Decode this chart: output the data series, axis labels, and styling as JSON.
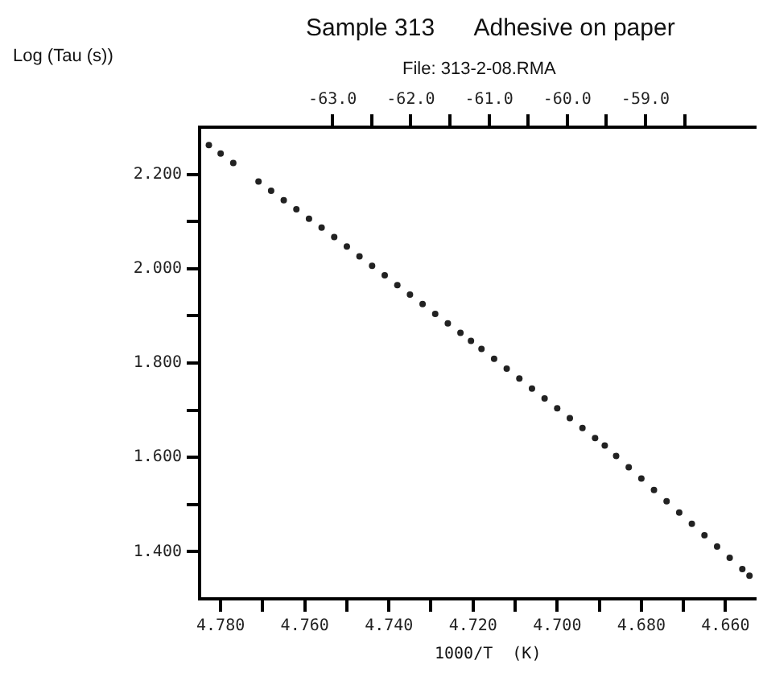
{
  "chart_data": {
    "type": "scatter",
    "title": "Sample 313      Adhesive on paper",
    "subtitle": "File: 313-2-08.RMA",
    "ylabel": "Log (Tau (s))",
    "xlabel": "1000/T  (K)",
    "x": [
      4.7828,
      4.78,
      4.777,
      4.771,
      4.768,
      4.765,
      4.762,
      4.759,
      4.756,
      4.753,
      4.75,
      4.747,
      4.744,
      4.741,
      4.738,
      4.735,
      4.732,
      4.729,
      4.726,
      4.723,
      4.7205,
      4.718,
      4.715,
      4.712,
      4.709,
      4.706,
      4.703,
      4.7,
      4.697,
      4.694,
      4.691,
      4.6887,
      4.686,
      4.683,
      4.68,
      4.677,
      4.674,
      4.671,
      4.668,
      4.665,
      4.662,
      4.659,
      4.656,
      4.6543
    ],
    "values": [
      2.262,
      2.244,
      2.224,
      2.185,
      2.165,
      2.145,
      2.126,
      2.106,
      2.087,
      2.067,
      2.047,
      2.026,
      2.006,
      1.986,
      1.965,
      1.945,
      1.925,
      1.904,
      1.884,
      1.864,
      1.847,
      1.83,
      1.809,
      1.788,
      1.767,
      1.746,
      1.725,
      1.704,
      1.683,
      1.662,
      1.641,
      1.625,
      1.603,
      1.579,
      1.555,
      1.531,
      1.507,
      1.483,
      1.459,
      1.435,
      1.411,
      1.387,
      1.363,
      1.349
    ],
    "color": "#222222",
    "marker": "circle",
    "grid": false,
    "legend": false,
    "xlim": [
      4.785,
      4.653
    ],
    "xticks": [
      {
        "value": 4.78,
        "label": "4.780"
      },
      {
        "value": 4.77,
        "label": null
      },
      {
        "value": 4.76,
        "label": "4.760"
      },
      {
        "value": 4.75,
        "label": null
      },
      {
        "value": 4.74,
        "label": "4.740"
      },
      {
        "value": 4.73,
        "label": null
      },
      {
        "value": 4.72,
        "label": "4.720"
      },
      {
        "value": 4.71,
        "label": null
      },
      {
        "value": 4.7,
        "label": "4.700"
      },
      {
        "value": 4.69,
        "label": null
      },
      {
        "value": 4.68,
        "label": "4.680"
      },
      {
        "value": 4.67,
        "label": null
      },
      {
        "value": 4.66,
        "label": "4.660"
      }
    ],
    "ylim": [
      1.3,
      2.3
    ],
    "yticks": [
      {
        "value": 1.4,
        "label": "1.400"
      },
      {
        "value": 1.5,
        "label": null
      },
      {
        "value": 1.6,
        "label": "1.600"
      },
      {
        "value": 1.7,
        "label": null
      },
      {
        "value": 1.8,
        "label": "1.800"
      },
      {
        "value": 1.9,
        "label": null
      },
      {
        "value": 2.0,
        "label": "2.000"
      },
      {
        "value": 2.1,
        "label": null
      },
      {
        "value": 2.2,
        "label": "2.200"
      }
    ],
    "x2lim": [
      -64.7,
      -57.6
    ],
    "x2ticks": [
      {
        "value": -63,
        "label": "-63.0"
      },
      {
        "value": -62.5,
        "label": null
      },
      {
        "value": -62,
        "label": "-62.0"
      },
      {
        "value": -61.5,
        "label": null
      },
      {
        "value": -61,
        "label": "-61.0"
      },
      {
        "value": -60.5,
        "label": null
      },
      {
        "value": -60,
        "label": "-60.0"
      },
      {
        "value": -59.5,
        "label": null
      },
      {
        "value": -59,
        "label": "-59.0"
      },
      {
        "value": -58.5,
        "label": null
      }
    ]
  }
}
